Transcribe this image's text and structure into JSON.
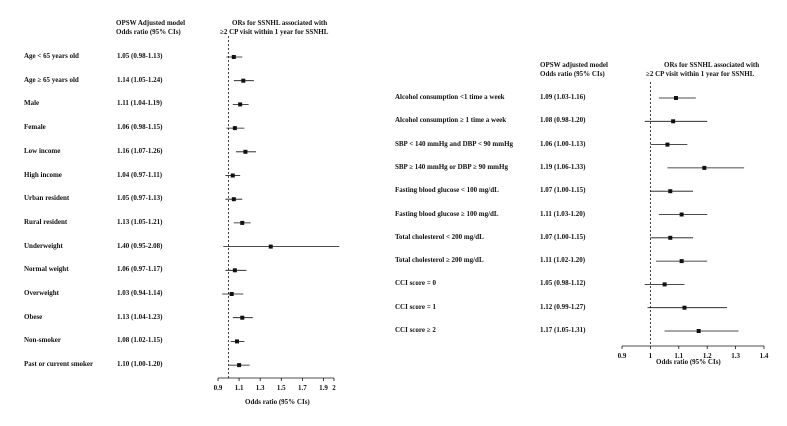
{
  "chart_data": [
    {
      "type": "forest",
      "col1_header": "OPSW Adjusted model",
      "col1_subheader": "Odds  ratio (95% CIs)",
      "col2_header_line1": "ORs for SSNHL associated with",
      "col2_header_line2": "≥2 CP visit within 1 year for SSNHL",
      "xlabel": "Odds  ratio (95% CIs)",
      "xlim": [
        0.9,
        2
      ],
      "xticks": [
        "0.9",
        "1.1",
        "1.3",
        "1.5",
        "1.7",
        "1.9",
        "2"
      ],
      "xtick_values": [
        0.9,
        1.1,
        1.3,
        1.5,
        1.7,
        1.9,
        2.0
      ],
      "reference": 1,
      "rows": [
        {
          "label": "Age < 65 years old",
          "or_text": "1.05 (0.98-1.13)",
          "or": 1.05,
          "lo": 0.98,
          "hi": 1.13
        },
        {
          "label": "Age ≥ 65 years old",
          "or_text": "1.14 (1.05-1.24)",
          "or": 1.14,
          "lo": 1.05,
          "hi": 1.24
        },
        {
          "label": "Male",
          "or_text": "1.11 (1.04-1.19)",
          "or": 1.11,
          "lo": 1.04,
          "hi": 1.19
        },
        {
          "label": "Female",
          "or_text": "1.06 (0.98-1.15)",
          "or": 1.06,
          "lo": 0.98,
          "hi": 1.15
        },
        {
          "label": "Low income",
          "or_text": "1.16 (1.07-1.26)",
          "or": 1.16,
          "lo": 1.07,
          "hi": 1.26
        },
        {
          "label": "High income",
          "or_text": "1.04 (0.97-1.11)",
          "or": 1.04,
          "lo": 0.97,
          "hi": 1.11
        },
        {
          "label": "Urban resident",
          "or_text": "1.05 (0.97-1.13)",
          "or": 1.05,
          "lo": 0.97,
          "hi": 1.13
        },
        {
          "label": "Rural resident",
          "or_text": "1.13 (1.05-1.21)",
          "or": 1.13,
          "lo": 1.05,
          "hi": 1.21
        },
        {
          "label": "Underweight",
          "or_text": "1.40 (0.95-2.08)",
          "or": 1.4,
          "lo": 0.95,
          "hi": 2.08
        },
        {
          "label": "Normal weight",
          "or_text": "1.06 (0.97-1.17)",
          "or": 1.06,
          "lo": 0.97,
          "hi": 1.17
        },
        {
          "label": "Overweight",
          "or_text": "1.03 (0.94-1.14)",
          "or": 1.03,
          "lo": 0.94,
          "hi": 1.14
        },
        {
          "label": "Obese",
          "or_text": "1.13 (1.04-1.23)",
          "or": 1.13,
          "lo": 1.04,
          "hi": 1.23
        },
        {
          "label": "Non-smoker",
          "or_text": "1.08 (1.02-1.15)",
          "or": 1.08,
          "lo": 1.02,
          "hi": 1.15
        },
        {
          "label": "Past or current smoker",
          "or_text": "1.10 (1.00-1.20)",
          "or": 1.1,
          "lo": 1.0,
          "hi": 1.2
        }
      ]
    },
    {
      "type": "forest",
      "col1_header": "OPSW adjusted model",
      "col1_subheader": "Odds  ratio (95% CIs)",
      "col2_header_line1": "ORs for SSNHL associated with",
      "col2_header_line2": "≥2 CP visit within 1 year for SSNHL",
      "xlabel": "Odds  ratio (95% CIs)",
      "xlim": [
        0.9,
        1.4
      ],
      "xticks": [
        "0.9",
        "1",
        "1.1",
        "1.2",
        "1.3",
        "1.4"
      ],
      "xtick_values": [
        0.9,
        1.0,
        1.1,
        1.2,
        1.3,
        1.4
      ],
      "reference": 1,
      "rows": [
        {
          "label": "Alcohol consumption <1 time a week",
          "or_text": "1.09 (1.03-1.16)",
          "or": 1.09,
          "lo": 1.03,
          "hi": 1.16
        },
        {
          "label": "Alcohol consumption ≥ 1 time a week",
          "or_text": "1.08 (0.98-1.20)",
          "or": 1.08,
          "lo": 0.98,
          "hi": 1.2
        },
        {
          "label": "SBP < 140 mmHg and DBP < 90 mmHg",
          "or_text": "1.06 (1.00-1.13)",
          "or": 1.06,
          "lo": 1.0,
          "hi": 1.13
        },
        {
          "label": "SBP ≥ 140 mmHg or DBP ≥ 90 mmHg",
          "or_text": "1.19 (1.06-1.33)",
          "or": 1.19,
          "lo": 1.06,
          "hi": 1.33
        },
        {
          "label": "Fasting blood glucose < 100 mg/dL",
          "or_text": "1.07 (1.00-1.15)",
          "or": 1.07,
          "lo": 1.0,
          "hi": 1.15
        },
        {
          "label": "Fasting blood glucose ≥ 100 mg/dL",
          "or_text": "1.11 (1.03-1.20)",
          "or": 1.11,
          "lo": 1.03,
          "hi": 1.2
        },
        {
          "label": "Total cholesterol < 200 mg/dL",
          "or_text": "1.07 (1.00-1.15)",
          "or": 1.07,
          "lo": 1.0,
          "hi": 1.15
        },
        {
          "label": "Total cholesterol ≥ 200 mg/dL",
          "or_text": "1.11 (1.02-1.20)",
          "or": 1.11,
          "lo": 1.02,
          "hi": 1.2
        },
        {
          "label": "CCI score = 0",
          "or_text": "1.05 (0.98-1.12)",
          "or": 1.05,
          "lo": 0.98,
          "hi": 1.12
        },
        {
          "label": "CCI score = 1",
          "or_text": "1.12 (0.99-1.27)",
          "or": 1.12,
          "lo": 0.99,
          "hi": 1.27
        },
        {
          "label": "CCI score ≥ 2",
          "or_text": "1.17 (1.05-1.31)",
          "or": 1.17,
          "lo": 1.05,
          "hi": 1.31
        }
      ]
    }
  ]
}
